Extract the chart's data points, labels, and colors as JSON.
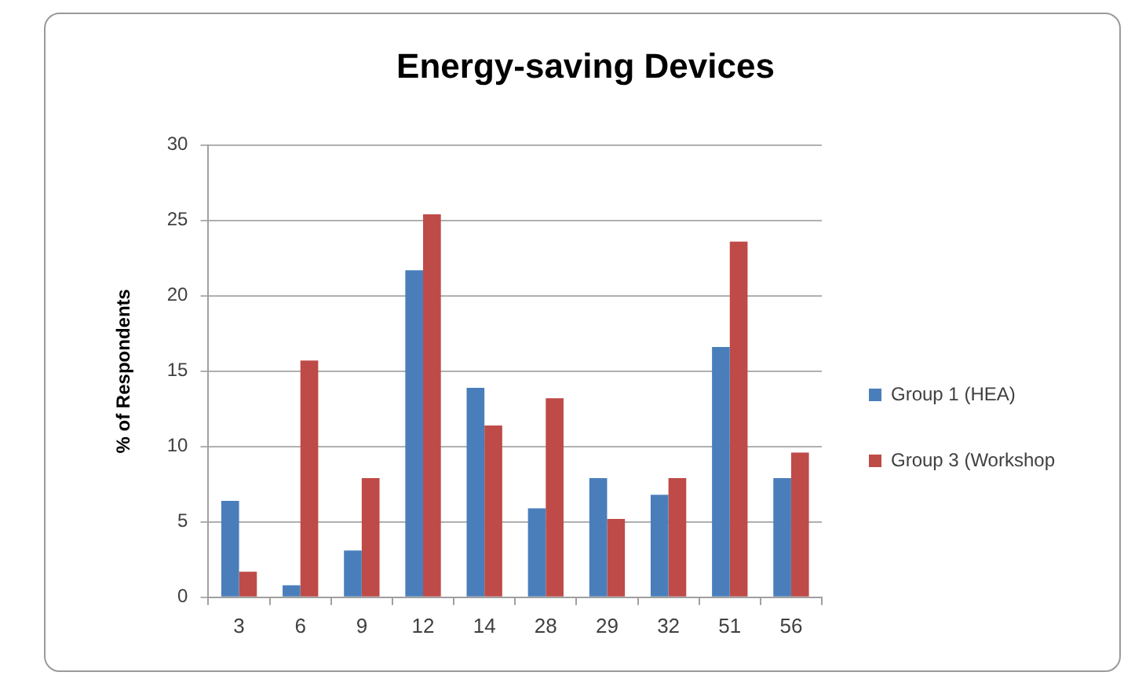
{
  "chart_data": {
    "type": "bar",
    "title": "Energy-saving Devices",
    "ylabel": "% of Respondents",
    "categories": [
      "3",
      "6",
      "9",
      "12",
      "14",
      "28",
      "29",
      "32",
      "51",
      "56"
    ],
    "series": [
      {
        "name": "Group 1 (HEA)",
        "color": "#4a7ebb",
        "values": [
          6.4,
          0.8,
          3.1,
          21.7,
          13.9,
          5.9,
          7.9,
          6.8,
          16.6,
          7.9
        ]
      },
      {
        "name": "Group 3 (Workshop",
        "color": "#be4b48",
        "values": [
          1.7,
          15.7,
          7.9,
          25.4,
          11.4,
          13.2,
          5.2,
          7.9,
          23.6,
          9.6
        ]
      }
    ],
    "ylim": [
      0,
      30
    ],
    "yticks": [
      0,
      5,
      10,
      15,
      20,
      25,
      30
    ],
    "grid": "y",
    "legend": "right"
  }
}
